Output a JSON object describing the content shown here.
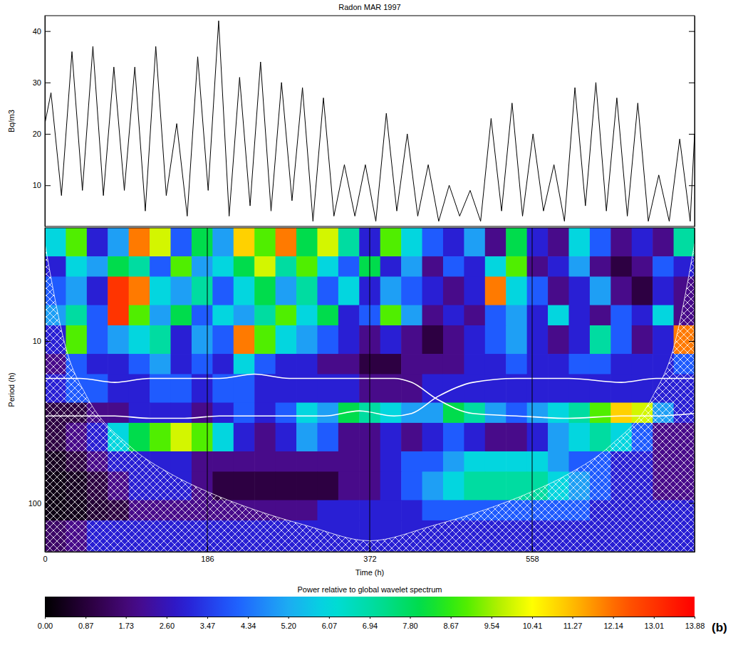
{
  "chart_data": [
    {
      "type": "line",
      "title": "Radon MAR 1997",
      "y_label": "Bq/m3",
      "x": [
        0,
        7,
        19,
        31,
        43,
        55,
        67,
        79,
        91,
        103,
        115,
        127,
        139,
        151,
        163,
        175,
        187,
        199,
        211,
        223,
        235,
        247,
        259,
        271,
        283,
        295,
        307,
        319,
        331,
        343,
        355,
        367,
        379,
        391,
        403,
        415,
        427,
        439,
        451,
        463,
        475,
        487,
        499,
        511,
        523,
        535,
        547,
        559,
        571,
        583,
        595,
        607,
        619,
        631,
        643,
        655,
        667,
        679,
        691,
        703,
        715,
        727,
        739,
        744
      ],
      "values": [
        22,
        28,
        8,
        36,
        9,
        37,
        8,
        33,
        9,
        33,
        5,
        37,
        8,
        22,
        4,
        35,
        9,
        42,
        4,
        31,
        6,
        34,
        5,
        30,
        7,
        29,
        3,
        27,
        4,
        14,
        4,
        14,
        3,
        24,
        5,
        20,
        4,
        14,
        3,
        10,
        4,
        9,
        3,
        23,
        5,
        26,
        4,
        20,
        5,
        14,
        3,
        29,
        6,
        30,
        5,
        27,
        4,
        26,
        3,
        12,
        3,
        19,
        3,
        20
      ],
      "color": "#000000",
      "xlim": [
        0,
        744
      ],
      "ylim": [
        2,
        43
      ],
      "yticks": [
        10,
        20,
        30,
        40
      ],
      "tick_labels": "y"
    },
    {
      "type": "heatmap",
      "x_label": "Time (h)",
      "y_label": "Period (h)",
      "xlim": [
        0,
        744
      ],
      "xticks": [
        0,
        186,
        372,
        558
      ],
      "ylim": [
        2,
        200
      ],
      "yticks": [
        10,
        100
      ],
      "log": "y",
      "grid": true,
      "cells": {
        "x": [
          0,
          24,
          48,
          72,
          96,
          120,
          144,
          168,
          192,
          216,
          240,
          264,
          288,
          312,
          336,
          360,
          384,
          408,
          432,
          456,
          480,
          504,
          528,
          552,
          576,
          600,
          624,
          648,
          672,
          696,
          720,
          744
        ],
        "y": [
          2,
          3,
          4,
          6,
          8,
          12,
          16,
          24,
          32,
          48,
          64,
          96,
          128,
          200
        ],
        "z": [
          [
            6,
            9,
            3,
            5,
            12,
            10,
            4,
            8,
            5,
            11,
            9,
            12,
            8,
            10,
            7,
            3,
            9,
            6,
            4,
            3,
            5,
            2,
            8,
            3,
            2,
            6,
            4,
            2,
            3,
            2,
            7
          ],
          [
            3,
            6,
            5,
            8,
            7,
            4,
            9,
            5,
            6,
            8,
            10,
            7,
            9,
            6,
            4,
            8,
            3,
            5,
            2,
            4,
            3,
            6,
            9,
            2,
            3,
            5,
            2,
            1,
            2,
            4,
            3
          ],
          [
            4,
            5,
            3,
            13,
            12,
            6,
            5,
            7,
            4,
            6,
            8,
            5,
            7,
            4,
            6,
            3,
            5,
            4,
            3,
            2,
            3,
            12,
            6,
            4,
            2,
            3,
            5,
            2,
            1,
            3,
            2
          ],
          [
            5,
            7,
            4,
            13,
            9,
            5,
            8,
            4,
            6,
            5,
            7,
            9,
            6,
            8,
            3,
            4,
            9,
            5,
            2,
            3,
            2,
            4,
            5,
            3,
            6,
            3,
            2,
            4,
            3,
            6,
            2
          ],
          [
            3,
            9,
            4,
            5,
            6,
            7,
            3,
            5,
            4,
            12,
            9,
            6,
            5,
            4,
            3,
            2,
            3,
            2,
            1,
            2,
            3,
            4,
            5,
            3,
            2,
            3,
            7,
            4,
            2,
            3,
            12
          ],
          [
            2,
            4,
            3,
            3,
            4,
            5,
            3,
            4,
            3,
            6,
            4,
            3,
            3,
            2,
            2,
            1,
            1,
            2,
            2,
            2,
            3,
            3,
            4,
            3,
            3,
            4,
            4,
            3,
            3,
            3,
            4
          ],
          [
            3,
            4,
            4,
            3,
            3,
            4,
            4,
            3,
            4,
            4,
            3,
            3,
            3,
            3,
            3,
            2,
            2,
            2,
            3,
            3,
            3,
            3,
            3,
            3,
            3,
            3,
            3,
            3,
            3,
            3,
            3
          ],
          [
            1,
            1,
            2,
            2,
            3,
            3,
            3,
            2,
            3,
            4,
            3,
            4,
            6,
            5,
            8,
            7,
            6,
            5,
            5,
            8,
            7,
            5,
            4,
            5,
            6,
            7,
            9,
            11,
            10,
            5,
            3
          ],
          [
            1,
            2,
            3,
            6,
            8,
            9,
            10,
            9,
            6,
            3,
            2,
            3,
            5,
            4,
            2,
            2,
            3,
            2,
            3,
            4,
            3,
            2,
            2,
            3,
            5,
            6,
            7,
            6,
            4,
            2,
            2
          ],
          [
            0.5,
            1,
            2,
            3,
            3,
            3,
            3,
            2,
            2,
            2,
            2,
            2,
            2,
            2,
            2,
            2,
            3,
            4,
            4,
            5,
            6,
            6,
            6,
            6,
            5,
            4,
            4,
            3,
            3,
            2,
            2
          ],
          [
            0.3,
            0.5,
            1,
            2,
            3,
            3,
            3,
            2,
            1,
            1,
            1,
            1,
            1,
            1,
            2,
            2,
            3,
            4,
            5,
            6,
            7,
            7,
            7,
            7,
            6,
            5,
            4,
            3,
            3,
            2,
            2
          ],
          [
            0.3,
            0.4,
            0.8,
            1,
            2,
            2,
            2,
            2,
            2,
            2,
            2,
            2,
            2,
            3,
            3,
            3,
            3,
            3,
            4,
            4,
            4,
            4,
            4,
            4,
            4,
            4,
            3,
            3,
            3,
            3,
            3
          ],
          [
            1.5,
            2,
            3,
            3,
            3,
            3,
            3,
            3,
            3,
            3,
            3,
            3,
            3,
            3,
            3,
            3,
            3,
            3,
            3,
            3,
            3,
            3,
            3,
            3,
            3,
            3,
            3,
            3,
            3,
            3,
            3
          ]
        ]
      },
      "colorbar": {
        "title": "Power relative to global wavelet spectrum",
        "range": [
          0,
          13.88
        ],
        "ticks": [
          {
            "value": 0,
            "label": "0.00"
          },
          0.87,
          1.73,
          {
            "value": 2.6,
            "label": "2.60"
          },
          3.47,
          4.34,
          {
            "value": 5.2,
            "label": "5.20"
          },
          6.07,
          6.94,
          {
            "value": 7.8,
            "label": "7.80"
          },
          8.67,
          9.54,
          10.41,
          11.27,
          12.14,
          13.01,
          13.88
        ]
      },
      "coi": {
        "x": [
          0,
          24,
          48,
          96,
          144,
          186,
          240,
          300,
          372,
          444,
          504,
          558,
          600,
          648,
          696,
          720,
          744
        ],
        "y": [
          2.5,
          11,
          22,
          44,
          66,
          85,
          110,
          138,
          171,
          138,
          110,
          85,
          66,
          44,
          22,
          11,
          2.5
        ]
      },
      "contours": [
        {
          "x": [
            0,
            40,
            80,
            120,
            160,
            200,
            240,
            280,
            320,
            360,
            400,
            420,
            450,
            490,
            540,
            600,
            660,
            700,
            744
          ],
          "y": [
            17,
            17,
            18,
            17,
            17,
            17,
            16,
            17,
            17,
            17,
            17,
            18,
            23,
            28,
            29,
            30,
            29,
            29,
            28
          ]
        },
        {
          "x": [
            0,
            40,
            80,
            120,
            160,
            200,
            240,
            280,
            320,
            360,
            400,
            420,
            450,
            490,
            540,
            600,
            660,
            700,
            744
          ],
          "y": [
            29,
            29,
            29,
            30,
            30,
            29,
            29,
            29,
            29,
            27,
            29,
            28,
            22,
            18,
            17,
            17,
            18,
            17,
            17
          ]
        }
      ],
      "annotations": [
        "(b)"
      ]
    }
  ]
}
